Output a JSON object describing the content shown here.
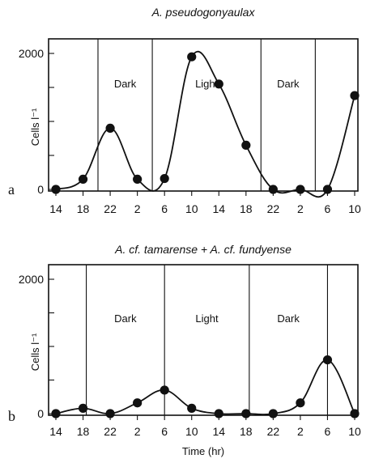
{
  "chart_data": [
    {
      "type": "line",
      "panel_label": "a",
      "title": "A. pseudogonyaulax",
      "ylabel": "Cells l⁻¹",
      "xlabel": "",
      "categories": [
        "14",
        "18",
        "22",
        "2",
        "6",
        "10",
        "14",
        "18",
        "22",
        "2",
        "6",
        "10"
      ],
      "ylim": [
        0,
        2000
      ],
      "yticks": [
        0,
        2000
      ],
      "series": [
        {
          "values": [
            0,
            150,
            900,
            150,
            160,
            1950,
            1550,
            650,
            0,
            0,
            0,
            1380
          ]
        }
      ],
      "dividers_after_category_index": [
        1.55,
        3.55,
        7.55,
        9.55
      ],
      "regions": [
        {
          "label": "Dark",
          "between": [
            1.55,
            3.55
          ]
        },
        {
          "label": "Light",
          "between": [
            3.55,
            7.55
          ]
        },
        {
          "label": "Dark",
          "between": [
            7.55,
            9.55
          ]
        }
      ],
      "grid": false
    },
    {
      "type": "line",
      "panel_label": "b",
      "title": "A. cf. tamarense + A. cf. fundyense",
      "ylabel": "Cells l⁻¹",
      "xlabel": "Time (hr)",
      "categories": [
        "14",
        "18",
        "22",
        "2",
        "6",
        "10",
        "14",
        "18",
        "22",
        "2",
        "6",
        "10"
      ],
      "ylim": [
        0,
        2000
      ],
      "yticks": [
        0,
        2000
      ],
      "series": [
        {
          "values": [
            0,
            80,
            0,
            160,
            350,
            80,
            0,
            0,
            0,
            160,
            800,
            0
          ]
        }
      ],
      "dividers_after_category_index": [
        1.12,
        4,
        7.12,
        10
      ],
      "regions": [
        {
          "label": "Dark",
          "between": [
            1.12,
            4
          ]
        },
        {
          "label": "Light",
          "between": [
            4,
            7.12
          ]
        },
        {
          "label": "Dark",
          "between": [
            7.12,
            10
          ]
        }
      ],
      "grid": false
    }
  ]
}
